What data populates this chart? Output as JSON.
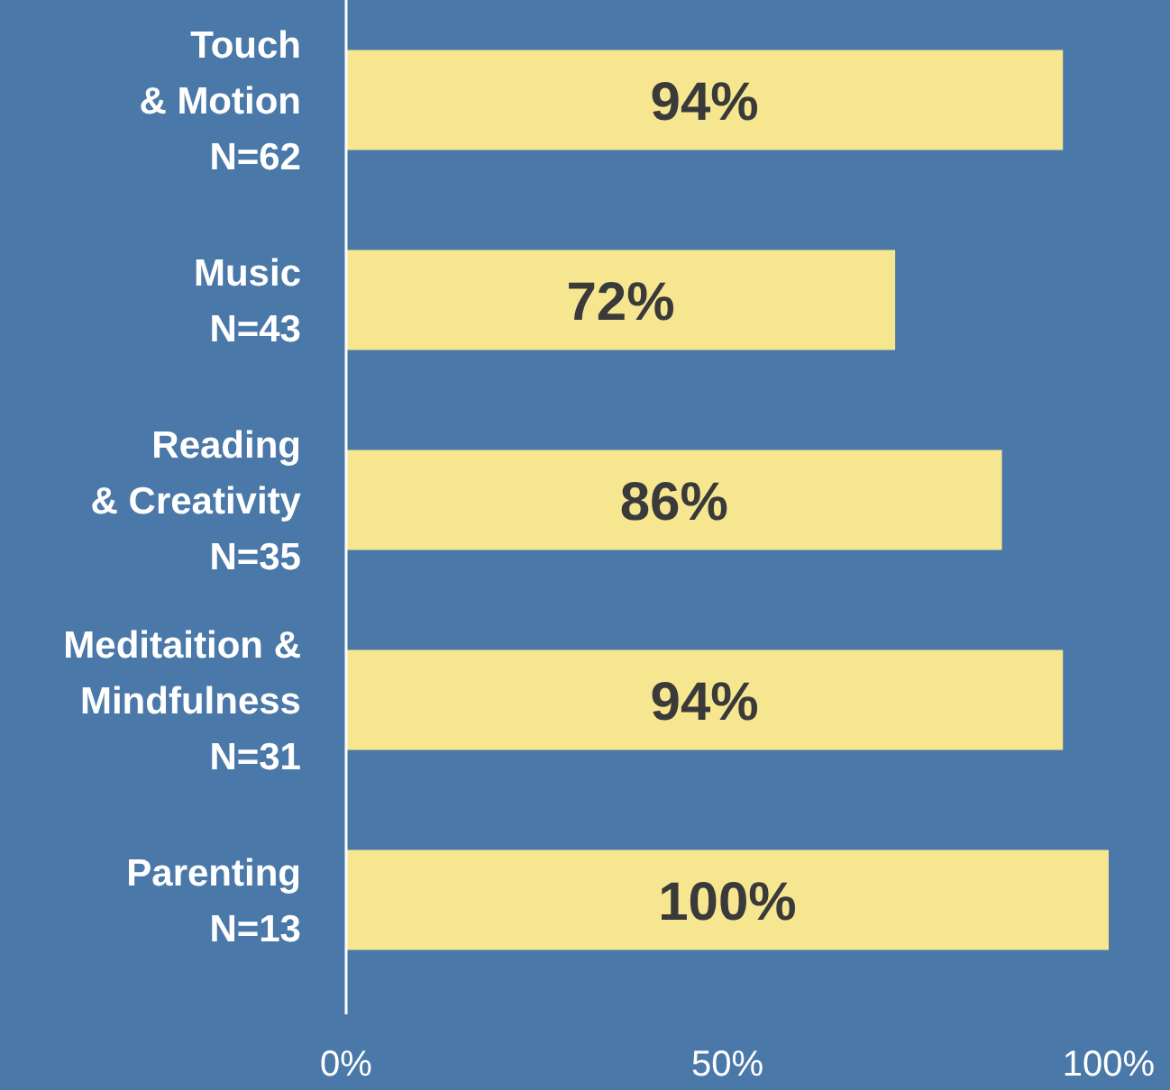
{
  "chart_data": {
    "type": "bar",
    "orientation": "horizontal",
    "categories": [
      "Touch\n& Motion\nN=62",
      "Music\nN=43",
      "Reading\n& Creativity\nN=35",
      "Meditaition &\nMindfulness\nN=31",
      "Parenting\nN=13"
    ],
    "values": [
      94,
      72,
      86,
      94,
      100
    ],
    "value_labels": [
      "94%",
      "72%",
      "86%",
      "94%",
      "100%"
    ],
    "color": "#f7e690",
    "xlim": [
      0,
      100
    ],
    "xticks": [
      {
        "value": 0,
        "label": "0%"
      },
      {
        "value": 50,
        "label": "50%"
      },
      {
        "value": 100,
        "label": "100%"
      }
    ]
  }
}
